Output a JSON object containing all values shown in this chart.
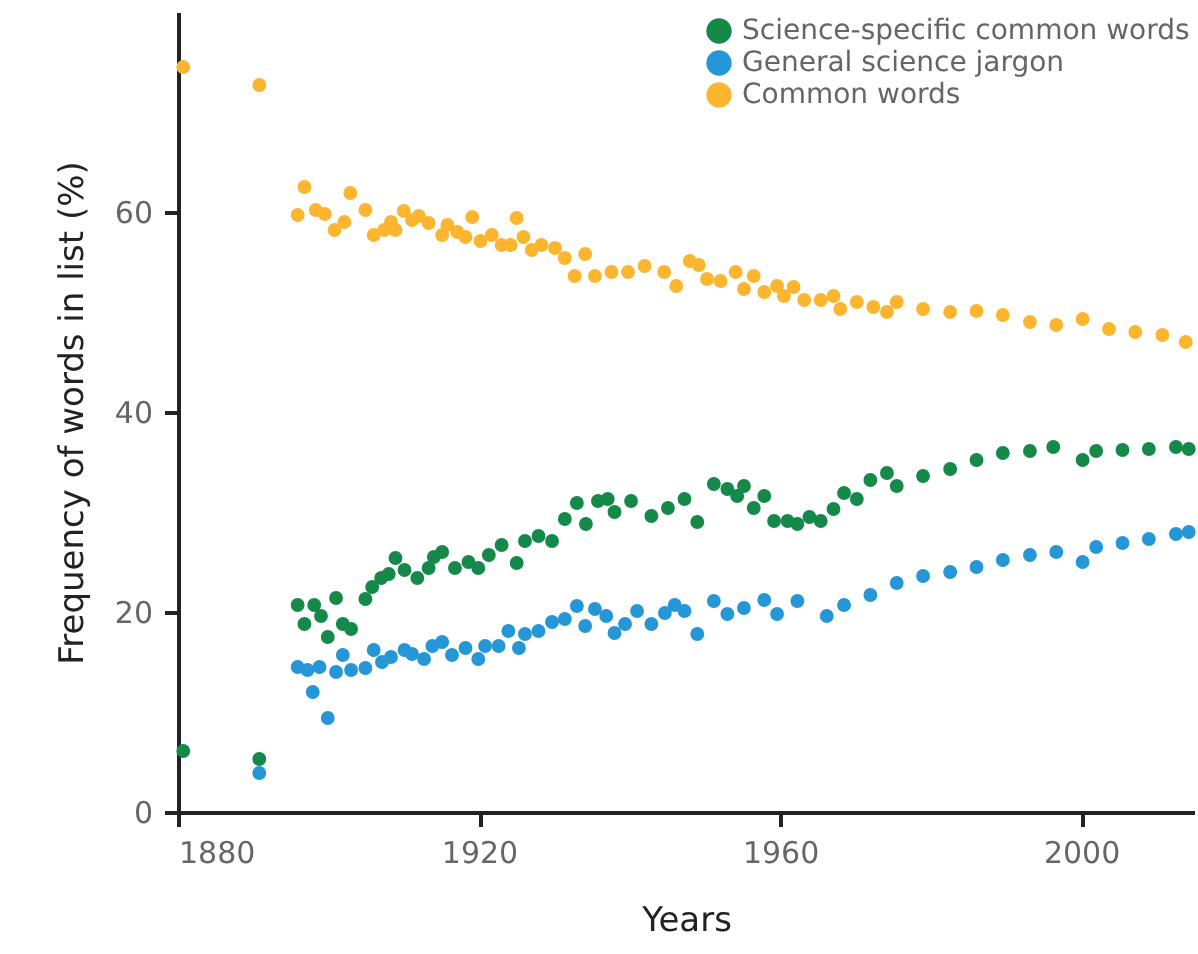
{
  "chart_data": {
    "type": "scatter",
    "xlabel": "Years",
    "ylabel": "Frequency of words in list (%)",
    "xlim": [
      1880,
      2015
    ],
    "xticks": [
      1880,
      1920,
      1960,
      2000
    ],
    "ylim": [
      0,
      80
    ],
    "yticks": [
      0,
      20,
      40,
      60
    ],
    "grid": false,
    "legend": "top right",
    "marker": "circle",
    "series": [
      {
        "name": "Science-specific common words",
        "color": "#14894a",
        "x": [
          1880.7,
          1890.8,
          1895.9,
          1896.8,
          1898.1,
          1899.0,
          1899.9,
          1901.0,
          1901.9,
          1903.0,
          1904.9,
          1905.8,
          1907.0,
          1908.0,
          1908.9,
          1910.1,
          1911.8,
          1913.3,
          1914.0,
          1915.1,
          1916.8,
          1918.6,
          1919.9,
          1921.3,
          1923.0,
          1925.0,
          1926.1,
          1927.9,
          1929.7,
          1931.4,
          1933.0,
          1934.2,
          1935.8,
          1937.1,
          1938.0,
          1940.2,
          1942.9,
          1945.1,
          1947.3,
          1949.0,
          1951.2,
          1953.0,
          1954.3,
          1955.2,
          1956.5,
          1957.9,
          1959.2,
          1961.0,
          1962.3,
          1963.9,
          1965.4,
          1967.1,
          1968.5,
          1970.2,
          1972.0,
          1974.2,
          1975.5,
          1979.0,
          1982.6,
          1986.1,
          1989.6,
          1993.2,
          1996.3,
          2000.2,
          2002.0,
          2005.5,
          2009.0,
          2012.6,
          2014.3
        ],
        "values": [
          6.1,
          5.3,
          20.7,
          18.8,
          20.7,
          19.6,
          17.5,
          21.4,
          18.8,
          18.3,
          21.3,
          22.5,
          23.4,
          23.8,
          25.4,
          24.2,
          23.4,
          24.4,
          25.5,
          26.0,
          24.4,
          25.0,
          24.4,
          25.7,
          26.7,
          24.9,
          27.1,
          27.6,
          27.1,
          29.3,
          30.9,
          28.8,
          31.1,
          31.3,
          30.0,
          31.1,
          29.6,
          30.4,
          31.3,
          29.0,
          32.8,
          32.3,
          31.6,
          32.6,
          30.4,
          31.6,
          29.1,
          29.1,
          28.8,
          29.5,
          29.1,
          30.3,
          31.9,
          31.3,
          33.2,
          33.9,
          32.6,
          33.6,
          34.3,
          35.2,
          35.9,
          36.1,
          36.5,
          35.2,
          36.1,
          36.2,
          36.3,
          36.5,
          36.3
        ]
      },
      {
        "name": "General science jargon",
        "color": "#2596d6",
        "x": [
          1890.8,
          1895.9,
          1897.2,
          1897.9,
          1898.8,
          1899.9,
          1901.0,
          1901.9,
          1903.0,
          1904.9,
          1906.0,
          1907.1,
          1908.3,
          1910.1,
          1911.1,
          1912.7,
          1913.8,
          1915.1,
          1916.4,
          1918.2,
          1919.9,
          1920.8,
          1922.6,
          1923.9,
          1925.3,
          1926.1,
          1927.9,
          1929.7,
          1931.4,
          1933.0,
          1934.1,
          1935.4,
          1936.9,
          1938.0,
          1939.4,
          1941.0,
          1942.9,
          1944.7,
          1946.0,
          1947.3,
          1949.0,
          1951.2,
          1953.0,
          1955.2,
          1957.9,
          1959.6,
          1962.3,
          1966.2,
          1968.5,
          1972.0,
          1975.5,
          1979.0,
          1982.6,
          1986.1,
          1989.6,
          1993.2,
          1996.7,
          2000.2,
          2002.0,
          2005.5,
          2009.0,
          2012.6,
          2014.3
        ],
        "values": [
          3.9,
          14.5,
          14.2,
          12.0,
          14.5,
          9.4,
          14.0,
          15.7,
          14.2,
          14.4,
          16.2,
          15.0,
          15.5,
          16.2,
          15.8,
          15.3,
          16.6,
          17.0,
          15.7,
          16.4,
          15.3,
          16.6,
          16.6,
          18.1,
          16.4,
          17.8,
          18.1,
          19.0,
          19.3,
          20.6,
          18.6,
          20.3,
          19.6,
          17.9,
          18.8,
          20.1,
          18.8,
          19.9,
          20.7,
          20.1,
          17.8,
          21.1,
          19.8,
          20.4,
          21.2,
          19.8,
          21.1,
          19.6,
          20.7,
          21.7,
          22.9,
          23.6,
          24.0,
          24.5,
          25.2,
          25.7,
          26.0,
          25.0,
          26.5,
          26.9,
          27.3,
          27.8,
          28.0
        ]
      },
      {
        "name": "Common words",
        "color": "#fbb52f",
        "x": [
          1880.7,
          1890.8,
          1895.9,
          1896.8,
          1898.3,
          1899.5,
          1900.8,
          1902.1,
          1902.9,
          1904.9,
          1906.0,
          1907.4,
          1908.3,
          1908.9,
          1910.0,
          1911.1,
          1912.0,
          1913.3,
          1915.1,
          1915.8,
          1917.1,
          1918.2,
          1919.1,
          1920.2,
          1921.7,
          1923.0,
          1924.2,
          1925.0,
          1925.9,
          1927.0,
          1928.3,
          1930.1,
          1931.4,
          1932.7,
          1934.1,
          1935.4,
          1937.6,
          1939.8,
          1942.0,
          1944.6,
          1946.2,
          1948.0,
          1949.2,
          1950.3,
          1952.1,
          1954.1,
          1955.2,
          1956.5,
          1957.9,
          1959.6,
          1960.5,
          1961.8,
          1963.2,
          1965.4,
          1967.1,
          1968.0,
          1970.2,
          1972.4,
          1974.2,
          1975.5,
          1979.0,
          1982.6,
          1986.1,
          1989.6,
          1993.2,
          1996.7,
          2000.2,
          2003.7,
          2007.2,
          2010.8,
          2013.9
        ],
        "values": [
          74.5,
          72.7,
          59.7,
          62.5,
          60.2,
          59.8,
          58.2,
          59.0,
          61.9,
          60.2,
          57.7,
          58.2,
          59.0,
          58.2,
          60.1,
          59.2,
          59.6,
          58.9,
          57.7,
          58.7,
          58.0,
          57.5,
          59.5,
          57.1,
          57.7,
          56.7,
          56.7,
          59.4,
          57.5,
          56.2,
          56.7,
          56.4,
          55.4,
          53.6,
          55.8,
          53.6,
          54.0,
          54.0,
          54.6,
          54.0,
          52.6,
          55.1,
          54.7,
          53.3,
          53.1,
          54.0,
          52.3,
          53.6,
          52.0,
          52.6,
          51.6,
          52.5,
          51.2,
          51.2,
          51.6,
          50.3,
          51.0,
          50.5,
          50.0,
          51.0,
          50.3,
          50.0,
          50.1,
          49.7,
          49.0,
          48.7,
          49.3,
          48.3,
          48.0,
          47.7,
          47.0
        ]
      }
    ]
  }
}
